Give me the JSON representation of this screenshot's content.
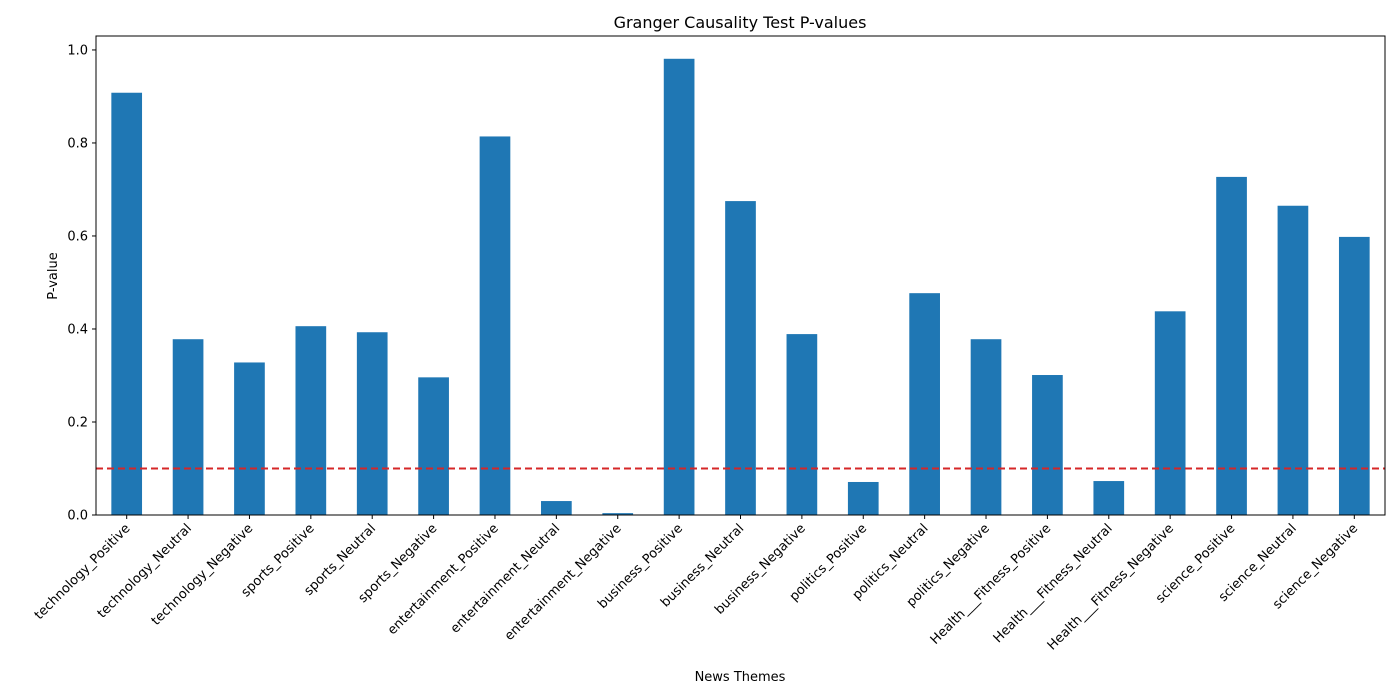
{
  "chart_data": {
    "type": "bar",
    "title": "Granger Causality Test P-values",
    "xlabel": "News Themes",
    "ylabel": "P-value",
    "ylim": [
      0,
      1.03
    ],
    "yticks": [
      0.0,
      0.2,
      0.4,
      0.6,
      0.8,
      1.0
    ],
    "ytick_labels": [
      "0.0",
      "0.2",
      "0.4",
      "0.6",
      "0.8",
      "1.0"
    ],
    "categories": [
      "technology_Positive",
      "technology_Neutral",
      "technology_Negative",
      "sports_Positive",
      "sports_Neutral",
      "sports_Negative",
      "entertainment_Positive",
      "entertainment_Neutral",
      "entertainment_Negative",
      "business_Positive",
      "business_Neutral",
      "business_Negative",
      "politics_Positive",
      "politics_Neutral",
      "politics_Negative",
      "Health___Fitness_Positive",
      "Health___Fitness_Neutral",
      "Health___Fitness_Negative",
      "science_Positive",
      "science_Neutral",
      "science_Negative"
    ],
    "values": [
      0.908,
      0.378,
      0.328,
      0.406,
      0.393,
      0.296,
      0.814,
      0.03,
      0.004,
      0.981,
      0.675,
      0.389,
      0.071,
      0.477,
      0.378,
      0.301,
      0.073,
      0.438,
      0.727,
      0.665,
      0.598
    ],
    "threshold": 0.1,
    "grid": false,
    "colors": {
      "bar": "#1f77b4",
      "threshold_line": "#d62728"
    }
  }
}
